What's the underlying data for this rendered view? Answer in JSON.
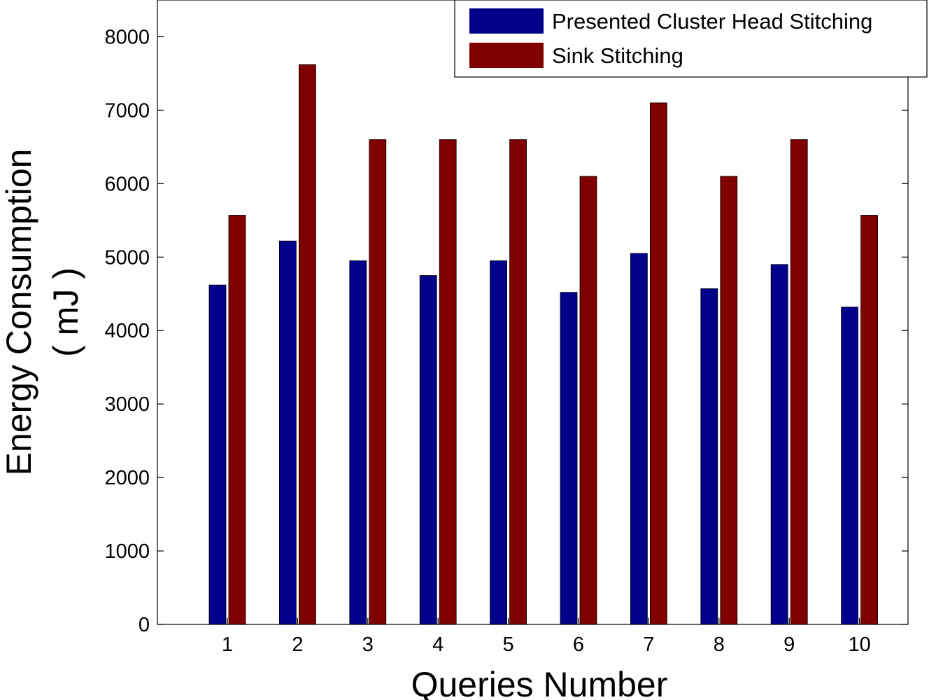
{
  "chart_data": {
    "type": "bar",
    "xlabel": "Queries Number",
    "ylabel_line1": "Energy Consumption",
    "ylabel_line2": "( mJ )",
    "categories": [
      "1",
      "2",
      "3",
      "4",
      "5",
      "6",
      "7",
      "8",
      "9",
      "10"
    ],
    "ylim": [
      0,
      8500
    ],
    "yticks": [
      0,
      1000,
      2000,
      3000,
      4000,
      5000,
      6000,
      7000,
      8000
    ],
    "grid": false,
    "legend_position": "top-right",
    "series": [
      {
        "name": "Presented Cluster Head Stitching",
        "color": "#00008b",
        "values": [
          4620,
          5220,
          4950,
          4750,
          4950,
          4520,
          5050,
          4570,
          4900,
          4320
        ]
      },
      {
        "name": "Sink Stitching",
        "color": "#800000",
        "values": [
          5570,
          7620,
          6600,
          6600,
          6600,
          6100,
          7100,
          6100,
          6600,
          5570
        ]
      }
    ]
  }
}
